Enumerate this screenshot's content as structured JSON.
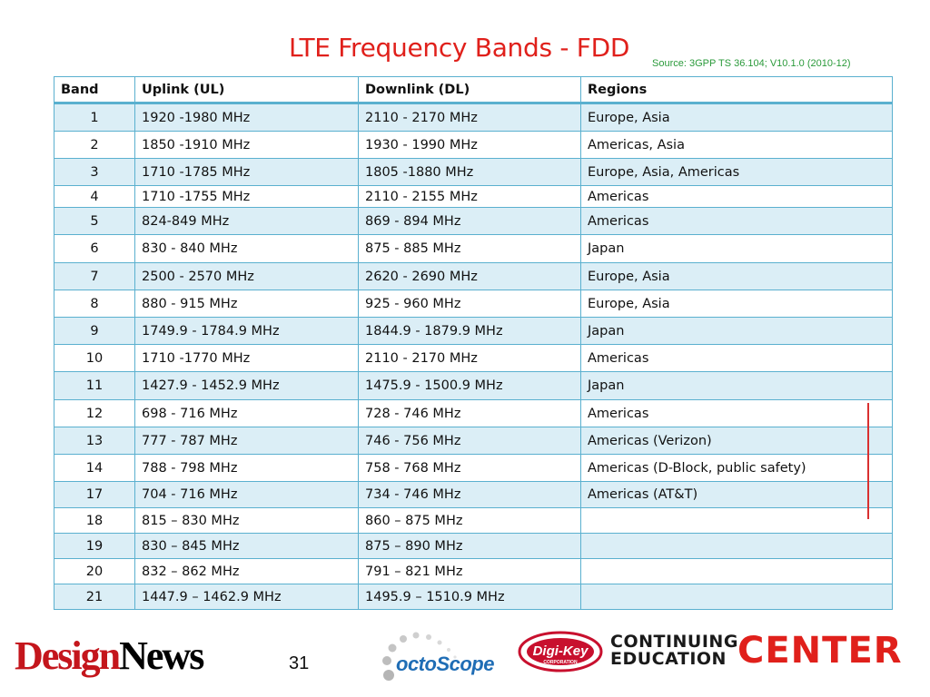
{
  "slide": {
    "title": "LTE Frequency Bands - FDD",
    "source": "Source:  3GPP TS 36.104; V10.1.0 (2010-12)",
    "page_number": "31"
  },
  "table": {
    "headers": [
      "Band",
      "Uplink (UL)",
      "Downlink (DL)",
      "Regions"
    ],
    "rows": [
      {
        "band": "1",
        "uplink": "1920 -1980 MHz",
        "downlink": "2110 - 2170 MHz",
        "regions": "Europe, Asia"
      },
      {
        "band": "2",
        "uplink": "1850 -1910 MHz",
        "downlink": "1930 - 1990 MHz",
        "regions": "Americas, Asia"
      },
      {
        "band": "3",
        "uplink": "1710 -1785 MHz",
        "downlink": "1805 -1880 MHz",
        "regions": "Europe, Asia, Americas"
      },
      {
        "band": "4",
        "uplink": "1710 -1755 MHz",
        "downlink": "2110 - 2155 MHz",
        "regions": "Americas"
      },
      {
        "band": "5",
        "uplink": "824-849 MHz",
        "downlink": "869 - 894 MHz",
        "regions": "Americas"
      },
      {
        "band": "6",
        "uplink": "830 - 840  MHz",
        "downlink": "875 - 885 MHz",
        "regions": "Japan"
      },
      {
        "band": "7",
        "uplink": "2500 - 2570 MHz",
        "downlink": "2620 - 2690 MHz",
        "regions": "Europe, Asia"
      },
      {
        "band": "8",
        "uplink": "880 - 915 MHz",
        "downlink": "925 - 960 MHz",
        "regions": "Europe, Asia"
      },
      {
        "band": "9",
        "uplink": "1749.9 - 1784.9 MHz",
        "downlink": "1844.9 - 1879.9 MHz",
        "regions": "Japan"
      },
      {
        "band": "10",
        "uplink": "1710 -1770 MHz",
        "downlink": "2110 - 2170 MHz",
        "regions": "Americas"
      },
      {
        "band": "11",
        "uplink": "1427.9 - 1452.9 MHz",
        "downlink": "1475.9 - 1500.9 MHz",
        "regions": "Japan"
      },
      {
        "band": "12",
        "uplink": "698 - 716 MHz",
        "downlink": "728 - 746 MHz",
        "regions": "Americas"
      },
      {
        "band": "13",
        "uplink": "777 - 787 MHz",
        "downlink": "746 - 756 MHz",
        "regions": "Americas (Verizon)"
      },
      {
        "band": "14",
        "uplink": "788 - 798 MHz",
        "downlink": "758 - 768 MHz",
        "regions": "Americas (D-Block, public safety)"
      },
      {
        "band": "17",
        "uplink": "704 - 716 MHz",
        "downlink": "734 - 746 MHz",
        "regions": "Americas (AT&T)"
      },
      {
        "band": "18",
        "uplink": "815 – 830 MHz",
        "downlink": "860 – 875 MHz",
        "regions": ""
      },
      {
        "band": "19",
        "uplink": "830 – 845 MHz",
        "downlink": "875 – 890 MHz",
        "regions": ""
      },
      {
        "band": "20",
        "uplink": "832 – 862 MHz",
        "downlink": "791 – 821 MHz",
        "regions": ""
      },
      {
        "band": "21",
        "uplink": "1447.9 – 1462.9 MHz",
        "downlink": "1495.9 – 1510.9 MHz",
        "regions": ""
      }
    ]
  },
  "logos": {
    "design_news": {
      "part1": "Design",
      "part2": "News"
    },
    "octoscope": "octoScope",
    "digikey": {
      "name": "Digi-Key",
      "sub": "CORPORATION"
    },
    "cec": {
      "line1": "CONTINUING",
      "line2": "EDUCATION",
      "center": "CENTER"
    }
  },
  "colors": {
    "title": "#e0201b",
    "source": "#2a9a3a",
    "table_border": "#5ab0cf",
    "row_alt": "#dbeef6",
    "annotation_line": "#d93030"
  }
}
